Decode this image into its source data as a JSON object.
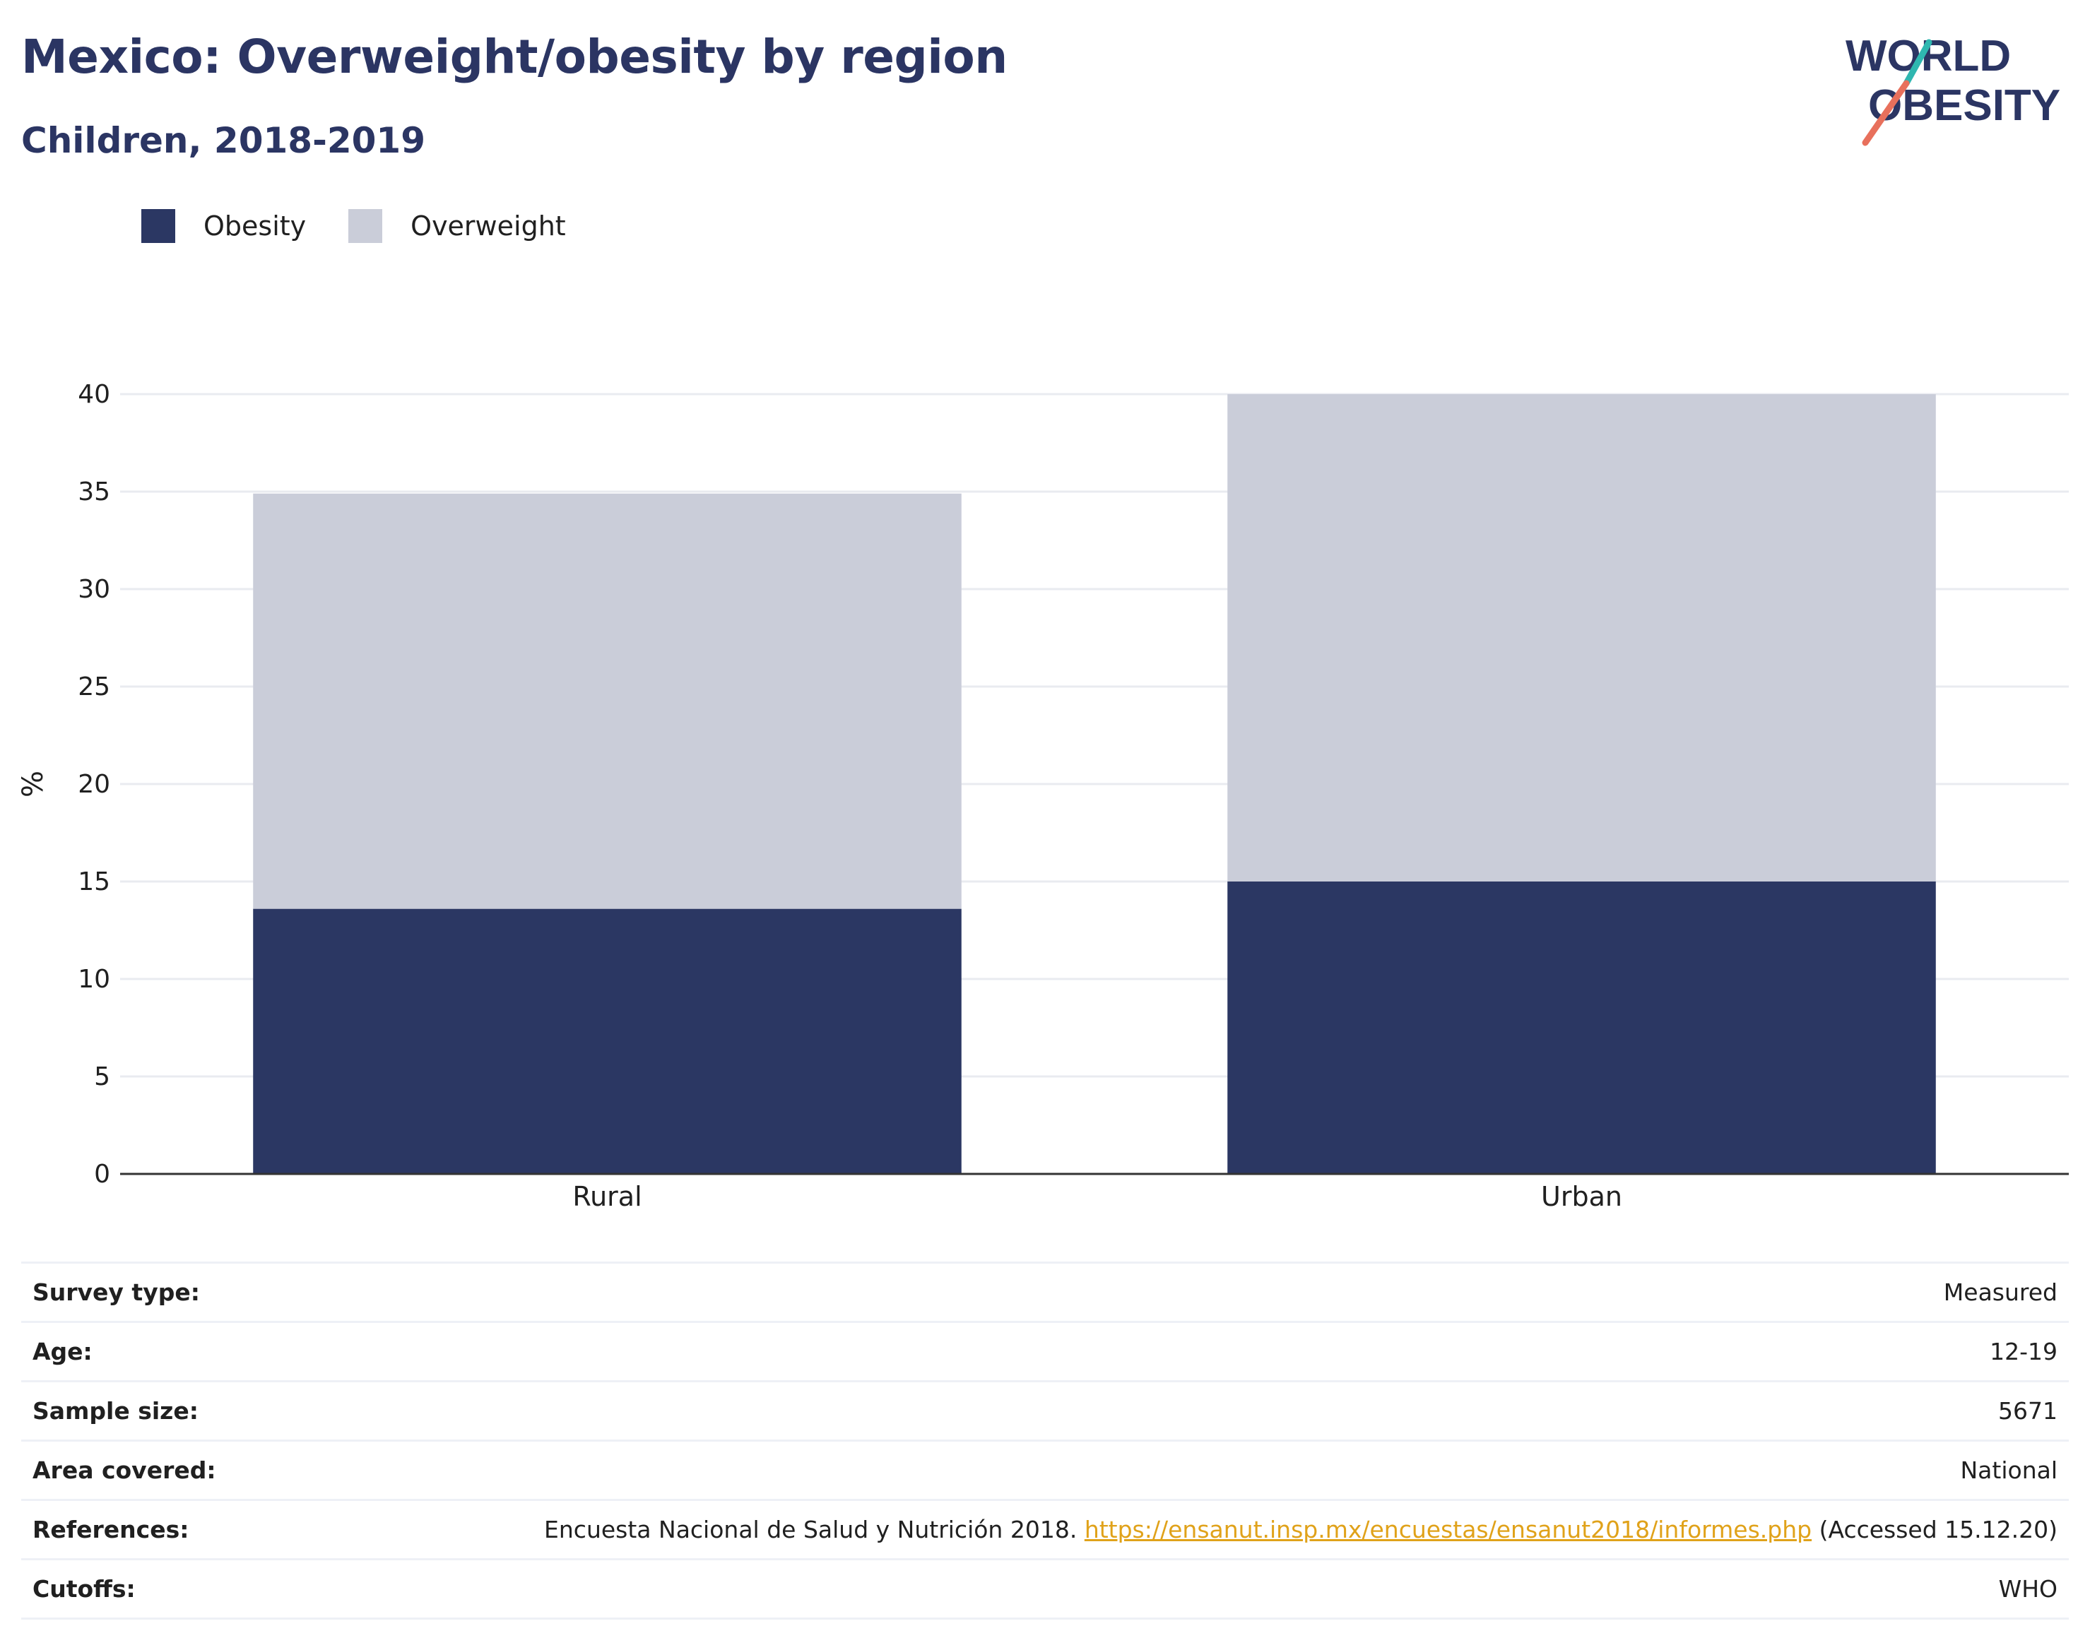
{
  "header": {
    "title": "Mexico: Overweight/obesity by region",
    "subtitle": "Children, 2018-2019"
  },
  "logo": {
    "line1": "WORLD",
    "line2": "OBESITY"
  },
  "colors": {
    "obesity": "#2b3763",
    "overweight": "#cacdd9",
    "text": "#2b3563",
    "accent_teal": "#2fb7b0",
    "accent_coral": "#e8705c",
    "link": "#e0a21a"
  },
  "chart_data": {
    "type": "bar",
    "stacked": true,
    "categories": [
      "Rural",
      "Urban"
    ],
    "series": [
      {
        "name": "Obesity",
        "values": [
          13.6,
          15.0
        ]
      },
      {
        "name": "Overweight",
        "values": [
          21.3,
          25.0
        ]
      }
    ],
    "ylabel": "%",
    "xlabel": "",
    "ylim": [
      0,
      40
    ],
    "yticks": [
      0,
      5,
      10,
      15,
      20,
      25,
      30,
      35,
      40
    ],
    "grid": true,
    "legend_position": "top-left"
  },
  "info": {
    "survey_type": {
      "label": "Survey type:",
      "value": "Measured"
    },
    "age": {
      "label": "Age:",
      "value": "12-19"
    },
    "sample_size": {
      "label": "Sample size:",
      "value": "5671"
    },
    "area_covered": {
      "label": "Area covered:",
      "value": "National"
    },
    "references": {
      "label": "References:",
      "text": "Encuesta Nacional de Salud y Nutrición 2018.",
      "link": "https://ensanut.insp.mx/encuestas/ensanut2018/informes.php",
      "suffix": "(Accessed 15.12.20)"
    },
    "cutoffs": {
      "label": "Cutoffs:",
      "value": "WHO"
    }
  }
}
